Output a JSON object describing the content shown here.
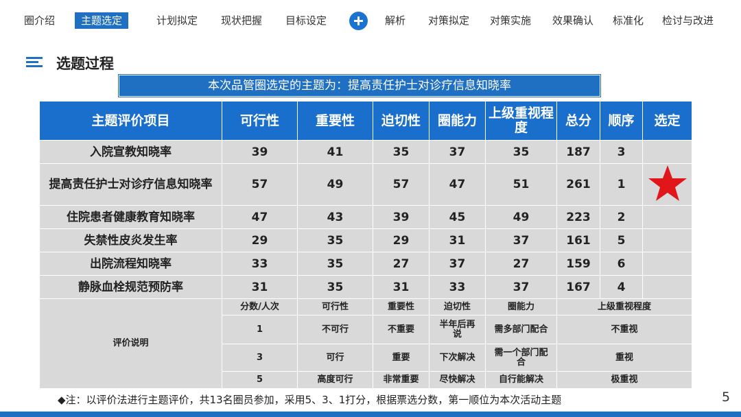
{
  "nav": {
    "items": [
      "圈介绍",
      "主题选定",
      "计划拟定",
      "现状把握",
      "目标设定",
      "解析",
      "对策拟定",
      "对策实施",
      "效果确认",
      "标准化",
      "检讨与改进"
    ],
    "active_index": 1
  },
  "section": {
    "title": "选题过程"
  },
  "topic": "本次品管圈选定的主题为：提高责任护士对诊疗信息知晓率",
  "table": {
    "headers": [
      "主题评价项目",
      "可行性",
      "重要性",
      "迫切性",
      "圈能力",
      "上级重视程度",
      "总分",
      "顺序",
      "选定"
    ],
    "rows": [
      {
        "name": "入院宣教知晓率",
        "values": [
          "39",
          "41",
          "35",
          "37",
          "35",
          "187",
          "3"
        ]
      },
      {
        "name": "提高责任护士对诊疗信息知晓率",
        "values": [
          "57",
          "49",
          "57",
          "47",
          "51",
          "261",
          "1"
        ],
        "selected": true
      },
      {
        "name": "住院患者健康教育知晓率",
        "values": [
          "47",
          "43",
          "39",
          "45",
          "49",
          "223",
          "2"
        ]
      },
      {
        "name": "失禁性皮炎发生率",
        "values": [
          "29",
          "35",
          "29",
          "31",
          "37",
          "161",
          "5"
        ]
      },
      {
        "name": "出院流程知晓率",
        "values": [
          "33",
          "35",
          "27",
          "37",
          "27",
          "159",
          "6"
        ]
      },
      {
        "name": "静脉血栓规范预防率",
        "values": [
          "31",
          "35",
          "31",
          "33",
          "37",
          "167",
          "4"
        ]
      }
    ],
    "eval": {
      "label": "评价说明",
      "header": [
        "分数/人次",
        "可行性",
        "重要性",
        "迫切性",
        "圈能力",
        "上级重视程度"
      ],
      "rows": [
        [
          "1",
          "不可行",
          "不重要",
          "半年后再说",
          "需多部门配合",
          "不重视"
        ],
        [
          "3",
          "可行",
          "重要",
          "下次解决",
          "需一个部门配合",
          "重视"
        ],
        [
          "5",
          "高度可行",
          "非常重要",
          "尽快解决",
          "自行能解决",
          "极重视"
        ]
      ]
    }
  },
  "star_color": "#e0161b",
  "accent_color": "#1f6fc2",
  "note": "◆注：以评价法进行主题评价，共13名圈员参加，采用5、3、1打分，根据票选分数，第一顺位为本次活动主题",
  "page_number": "5"
}
